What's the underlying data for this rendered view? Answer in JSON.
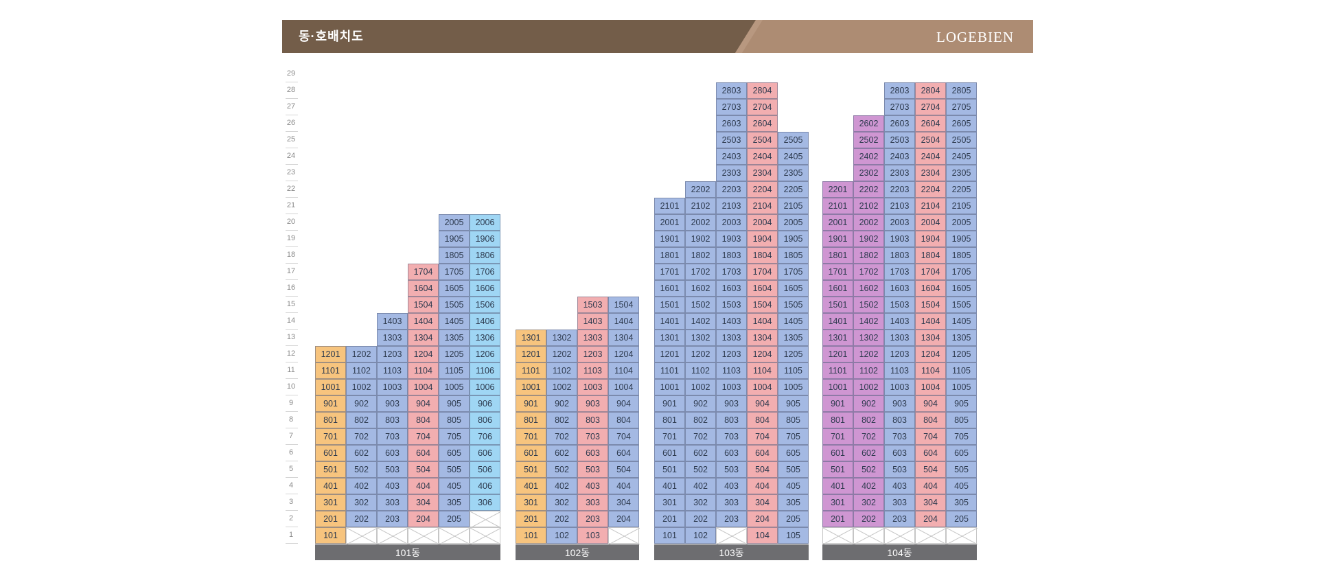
{
  "header": {
    "title": "동·호배치도",
    "brand": "LOGEBIEN"
  },
  "colors": {
    "yellow": "#f7c47e",
    "blue": "#a4b9e3",
    "pink": "#f2aeb0",
    "cyan": "#9fd6f4",
    "purple": "#cf96d2",
    "header_dark": "#735d49",
    "header_light": "#ad8c73",
    "label_bar": "#6d6d70"
  },
  "floors": [
    "1",
    "2",
    "3",
    "4",
    "5",
    "6",
    "7",
    "8",
    "9",
    "10",
    "11",
    "12",
    "13",
    "14",
    "15",
    "16",
    "17",
    "18",
    "19",
    "20",
    "21",
    "22",
    "23",
    "24",
    "25",
    "26",
    "27",
    "28",
    "29"
  ],
  "buildings": [
    {
      "label": "101동",
      "lines": [
        {
          "line": 1,
          "color": "yellow",
          "min": 1,
          "max": 12
        },
        {
          "line": 2,
          "color": "blue",
          "min": 2,
          "max": 12
        },
        {
          "line": 3,
          "color": "blue",
          "min": 2,
          "max": 14
        },
        {
          "line": 4,
          "color": "pink",
          "min": 2,
          "max": 17
        },
        {
          "line": 5,
          "color": "blue",
          "min": 2,
          "max": 20
        },
        {
          "line": 6,
          "color": "cyan",
          "min": 3,
          "max": 20
        }
      ]
    },
    {
      "label": "102동",
      "lines": [
        {
          "line": 1,
          "color": "yellow",
          "min": 1,
          "max": 13
        },
        {
          "line": 2,
          "color": "blue",
          "min": 1,
          "max": 13
        },
        {
          "line": 3,
          "color": "pink",
          "min": 1,
          "max": 15
        },
        {
          "line": 4,
          "color": "blue",
          "min": 2,
          "max": 15
        }
      ]
    },
    {
      "label": "103동",
      "lines": [
        {
          "line": 1,
          "color": "blue",
          "min": 1,
          "max": 21
        },
        {
          "line": 2,
          "color": "blue",
          "min": 1,
          "max": 22
        },
        {
          "line": 3,
          "color": "blue",
          "min": 2,
          "max": 28
        },
        {
          "line": 4,
          "color": "pink",
          "min": 1,
          "max": 28
        },
        {
          "line": 5,
          "color": "blue",
          "min": 1,
          "max": 25
        }
      ]
    },
    {
      "label": "104동",
      "lines": [
        {
          "line": 1,
          "color": "purple",
          "min": 2,
          "max": 22
        },
        {
          "line": 2,
          "color": "purple",
          "min": 2,
          "max": 26
        },
        {
          "line": 3,
          "color": "blue",
          "min": 2,
          "max": 28
        },
        {
          "line": 4,
          "color": "pink",
          "min": 2,
          "max": 28
        },
        {
          "line": 5,
          "color": "blue",
          "min": 2,
          "max": 28
        }
      ]
    }
  ]
}
